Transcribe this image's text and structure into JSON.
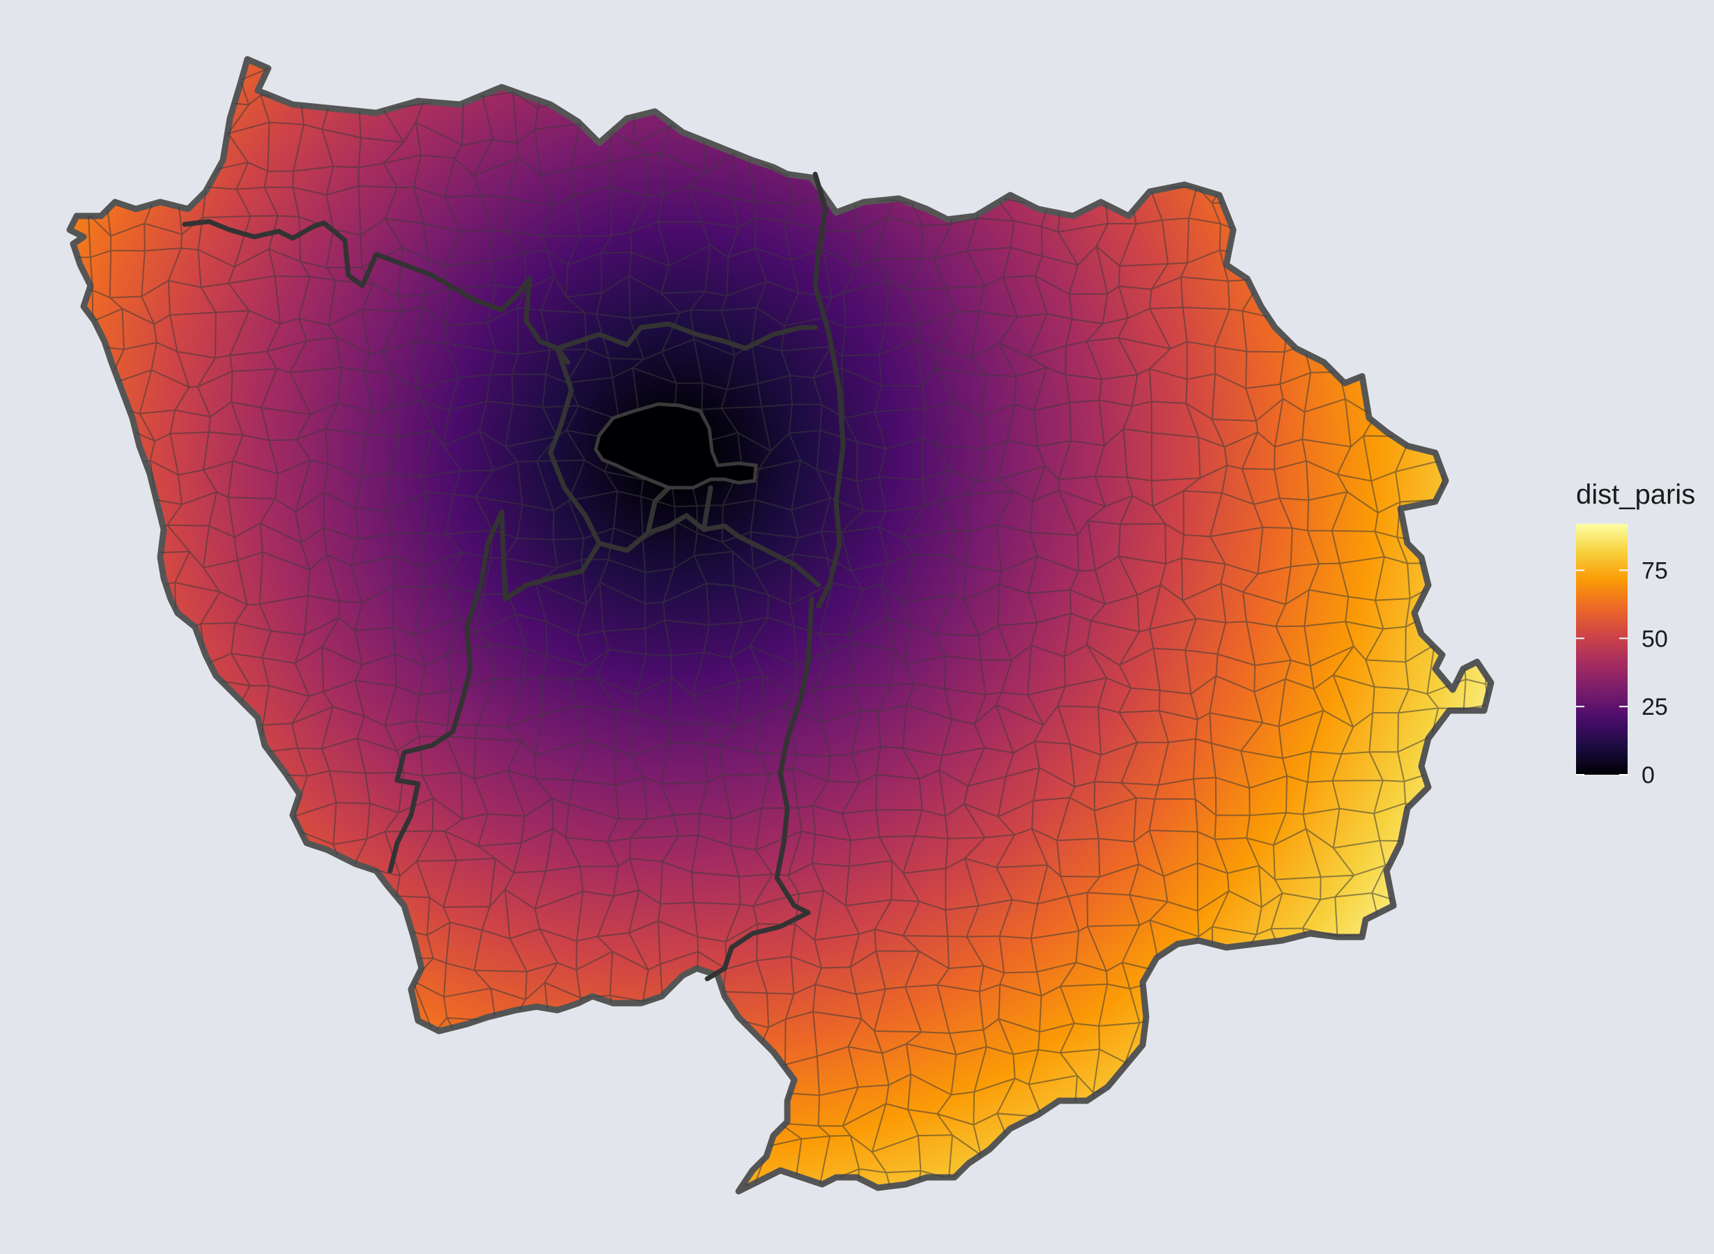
{
  "map": {
    "region": "Île-de-France",
    "fill_variable": "dist_paris",
    "palette": "inferno",
    "background_color": "#E2E6EC",
    "commune_border_color": "#3a3a3a",
    "department_border_color": "#333333"
  },
  "legend": {
    "title": "dist_paris",
    "placement": "right",
    "domain": [
      0,
      92
    ],
    "ticks": [
      {
        "value": 0,
        "label": "0"
      },
      {
        "value": 25,
        "label": "25"
      },
      {
        "value": 50,
        "label": "50"
      },
      {
        "value": 75,
        "label": "75"
      }
    ],
    "colors": [
      "#000004",
      "#1B0C41",
      "#4A0C6B",
      "#781C6D",
      "#A52C60",
      "#CF4446",
      "#ED6925",
      "#FB9B06",
      "#F7D13D",
      "#FCFFA4"
    ]
  },
  "chart_data": {
    "type": "choropleth",
    "variable": "dist_paris",
    "scale": [
      0,
      92
    ],
    "pattern": "radial gradient: near 0 at Paris centre, increasing outward; maximum (~90) at the south-east edge"
  }
}
